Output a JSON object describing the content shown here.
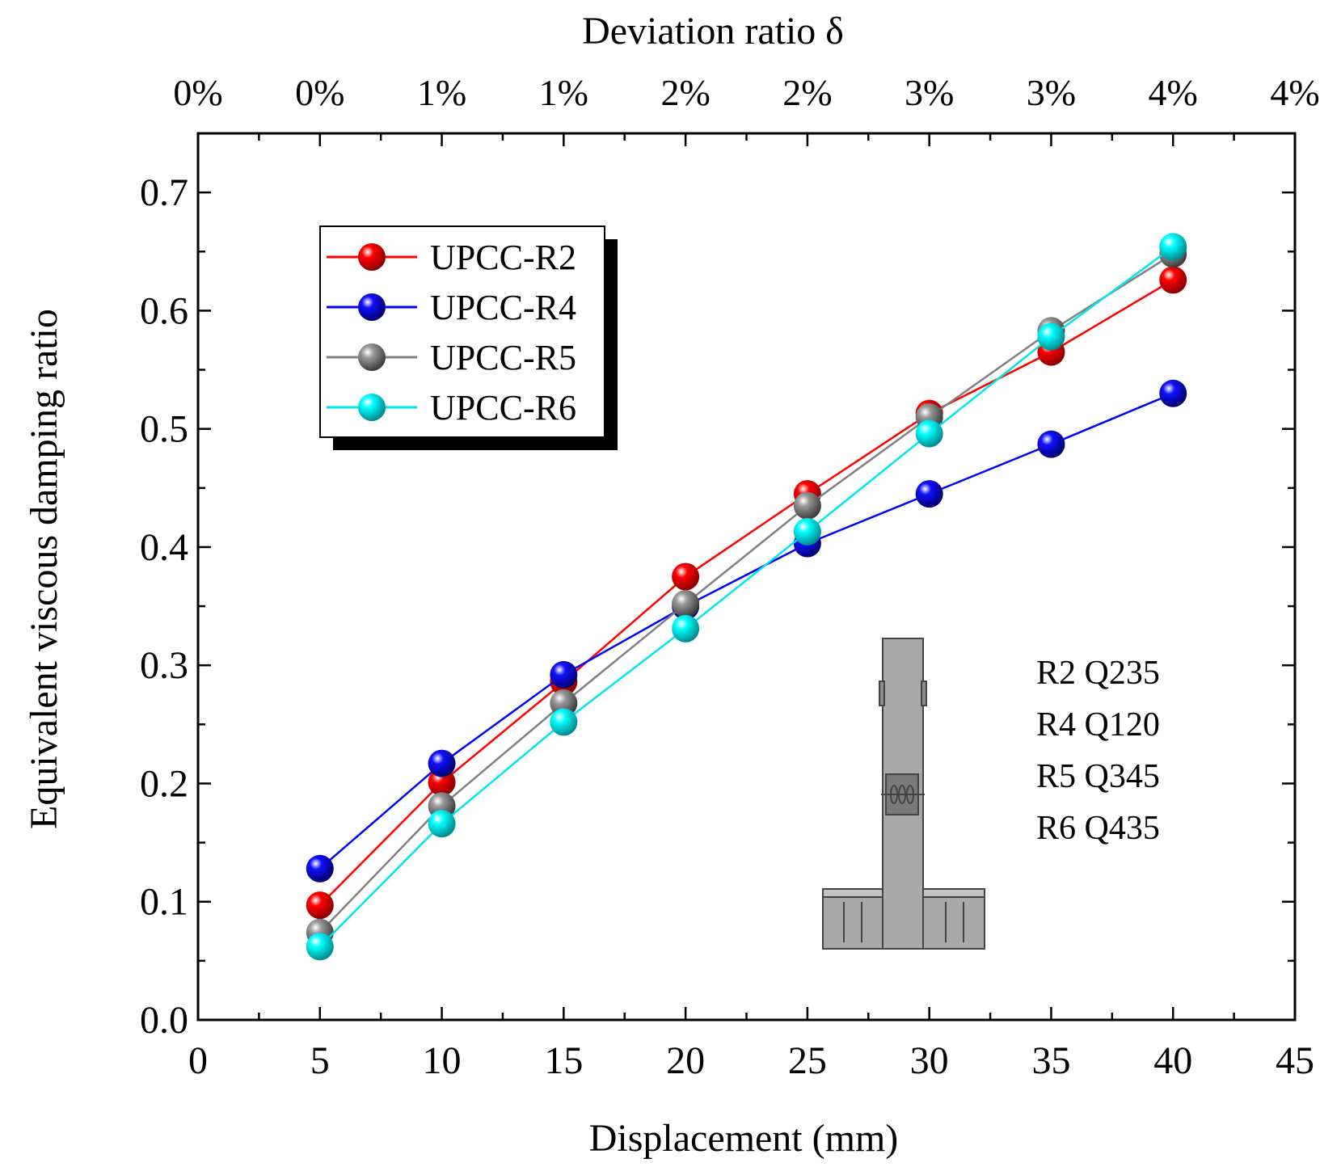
{
  "chart_data": {
    "type": "line",
    "xlabel": "Displacement (mm)",
    "ylabel": "Equivalent viscous damping ratio",
    "top_axis_title": "Deviation ratio δ",
    "xlim": [
      0,
      45
    ],
    "ylim": [
      0.0,
      0.75
    ],
    "x_ticks": [
      "0",
      "5",
      "10",
      "15",
      "20",
      "25",
      "30",
      "35",
      "40",
      "45"
    ],
    "y_ticks": [
      "0.0",
      "0.1",
      "0.2",
      "0.3",
      "0.4",
      "0.5",
      "0.6",
      "0.7"
    ],
    "top_ticks": [
      "0%",
      "0%",
      "1%",
      "1%",
      "2%",
      "2%",
      "3%",
      "3%",
      "4%",
      "4%"
    ],
    "x": [
      5,
      10,
      15,
      20,
      25,
      30,
      35,
      40
    ],
    "series": [
      {
        "name": "UPCC-R2",
        "color": "#ff0000",
        "values": [
          0.097,
          0.201,
          0.286,
          0.375,
          0.445,
          0.513,
          0.565,
          0.626
        ]
      },
      {
        "name": "UPCC-R4",
        "color": "#0000ff",
        "values": [
          0.128,
          0.217,
          0.292,
          0.35,
          0.403,
          0.445,
          0.487,
          0.53
        ]
      },
      {
        "name": "UPCC-R5",
        "color": "#808080",
        "values": [
          0.074,
          0.181,
          0.268,
          0.352,
          0.435,
          0.51,
          0.583,
          0.648
        ]
      },
      {
        "name": "UPCC-R6",
        "color": "#00e5ee",
        "values": [
          0.062,
          0.166,
          0.252,
          0.331,
          0.413,
          0.496,
          0.578,
          0.654
        ]
      }
    ],
    "legend_position": "top-left",
    "annotations": [
      "R2 Q235",
      "R4 Q120",
      "R5 Q345",
      "R6 Q435"
    ]
  }
}
